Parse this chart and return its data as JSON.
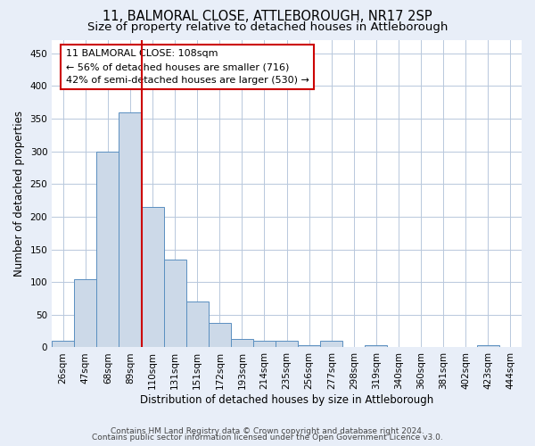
{
  "title": "11, BALMORAL CLOSE, ATTLEBOROUGH, NR17 2SP",
  "subtitle": "Size of property relative to detached houses in Attleborough",
  "xlabel": "Distribution of detached houses by size in Attleborough",
  "ylabel": "Number of detached properties",
  "categories": [
    "26sqm",
    "47sqm",
    "68sqm",
    "89sqm",
    "110sqm",
    "131sqm",
    "151sqm",
    "172sqm",
    "193sqm",
    "214sqm",
    "235sqm",
    "256sqm",
    "277sqm",
    "298sqm",
    "319sqm",
    "340sqm",
    "360sqm",
    "381sqm",
    "402sqm",
    "423sqm",
    "444sqm"
  ],
  "values": [
    10,
    105,
    300,
    360,
    215,
    135,
    70,
    37,
    13,
    10,
    10,
    3,
    10,
    0,
    3,
    0,
    0,
    0,
    0,
    3,
    0
  ],
  "bar_color": "#ccd9e8",
  "bar_edge_color": "#5a8fc0",
  "property_line_color": "#cc0000",
  "property_line_bin": 3,
  "annotation_text": "11 BALMORAL CLOSE: 108sqm\n← 56% of detached houses are smaller (716)\n42% of semi-detached houses are larger (530) →",
  "annotation_box_color": "white",
  "annotation_box_edge_color": "#cc0000",
  "ylim": [
    0,
    470
  ],
  "yticks": [
    0,
    50,
    100,
    150,
    200,
    250,
    300,
    350,
    400,
    450
  ],
  "footnote1": "Contains HM Land Registry data © Crown copyright and database right 2024.",
  "footnote2": "Contains public sector information licensed under the Open Government Licence v3.0.",
  "background_color": "#e8eef8",
  "plot_background_color": "#ffffff",
  "grid_color": "#b8c8dc",
  "title_fontsize": 10.5,
  "subtitle_fontsize": 9.5,
  "xlabel_fontsize": 8.5,
  "ylabel_fontsize": 8.5,
  "tick_fontsize": 7.5,
  "annotation_fontsize": 8
}
